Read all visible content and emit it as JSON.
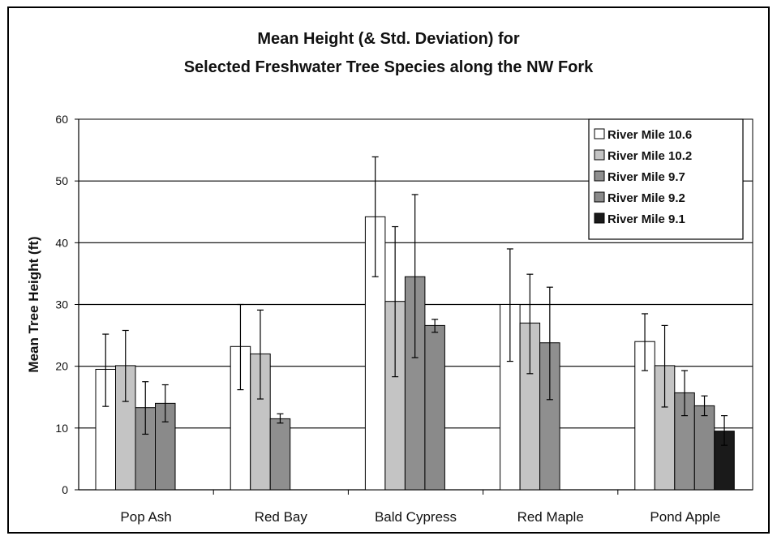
{
  "chart_data": {
    "type": "bar",
    "title": "Mean Height (& Std. Deviation) for",
    "subtitle": "Selected Freshwater Tree Species along the NW Fork",
    "xlabel": "",
    "ylabel": "Mean Tree Height (ft)",
    "ylim": [
      0,
      60
    ],
    "yticks": [
      "0",
      "10",
      "20",
      "30",
      "40",
      "50",
      "60"
    ],
    "grid": true,
    "legend_position": "top-right",
    "categories": [
      "Pop Ash",
      "Red Bay",
      "Bald Cypress",
      "Red Maple",
      "Pond Apple"
    ],
    "series": [
      {
        "name": "River Mile 10.6",
        "color": "#ffffff",
        "values": [
          19.5,
          23.2,
          44.2,
          30,
          24
        ],
        "err_low": [
          13.5,
          16.2,
          34.5,
          20.8,
          19.3
        ],
        "err_high": [
          25.2,
          30,
          53.9,
          39,
          28.5
        ]
      },
      {
        "name": "River Mile 10.2",
        "color": "#c4c4c4",
        "values": [
          20.1,
          22,
          30.5,
          27,
          20.1
        ],
        "err_low": [
          14.3,
          14.7,
          18.3,
          18.8,
          13.4
        ],
        "err_high": [
          25.8,
          29.1,
          42.6,
          34.9,
          26.6
        ]
      },
      {
        "name": "River Mile 9.7",
        "color": "#8f8f8f",
        "values": [
          13.3,
          11.5,
          34.5,
          23.8,
          15.7
        ],
        "err_low": [
          9,
          10.8,
          21.4,
          14.6,
          12
        ],
        "err_high": [
          17.5,
          12.3,
          47.8,
          32.8,
          19.3
        ]
      },
      {
        "name": "River Mile 9.2",
        "color": "#8a8a8a",
        "values": [
          14,
          null,
          26.6,
          null,
          13.6
        ],
        "err_low": [
          11,
          null,
          25.5,
          null,
          12
        ],
        "err_high": [
          17,
          null,
          27.6,
          null,
          15.2
        ]
      },
      {
        "name": "River Mile 9.1",
        "color": "#1a1a1a",
        "values": [
          null,
          null,
          null,
          null,
          9.5
        ],
        "err_low": [
          null,
          null,
          null,
          null,
          7.2
        ],
        "err_high": [
          null,
          null,
          null,
          null,
          12
        ]
      }
    ]
  }
}
